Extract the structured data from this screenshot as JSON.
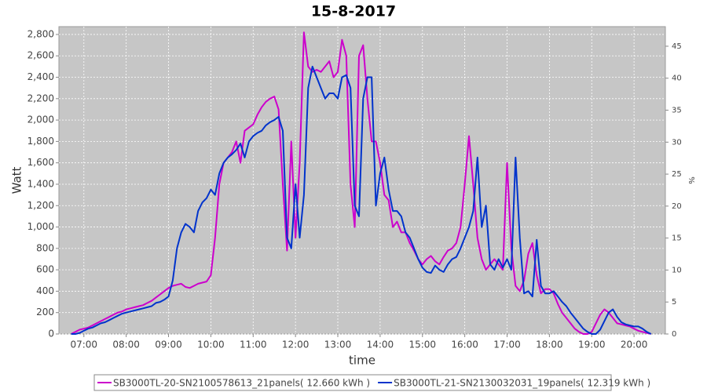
{
  "chart_data": {
    "type": "line",
    "title": "15-8-2017",
    "xlabel": "time",
    "ylabel": "Watt",
    "y2label": "%",
    "x": [
      6.7,
      6.8,
      6.9,
      7.0,
      7.1,
      7.2,
      7.3,
      7.4,
      7.5,
      7.6,
      7.7,
      7.8,
      7.9,
      8.0,
      8.1,
      8.2,
      8.3,
      8.4,
      8.5,
      8.6,
      8.7,
      8.8,
      8.9,
      9.0,
      9.1,
      9.2,
      9.3,
      9.4,
      9.5,
      9.6,
      9.7,
      9.8,
      9.9,
      10.0,
      10.1,
      10.2,
      10.3,
      10.4,
      10.5,
      10.6,
      10.7,
      10.8,
      10.9,
      11.0,
      11.1,
      11.2,
      11.3,
      11.4,
      11.5,
      11.6,
      11.7,
      11.8,
      11.9,
      12.0,
      12.1,
      12.2,
      12.3,
      12.4,
      12.5,
      12.6,
      12.7,
      12.8,
      12.9,
      13.0,
      13.1,
      13.2,
      13.3,
      13.4,
      13.5,
      13.6,
      13.7,
      13.8,
      13.9,
      14.0,
      14.1,
      14.2,
      14.3,
      14.4,
      14.5,
      14.6,
      14.7,
      14.8,
      14.9,
      15.0,
      15.1,
      15.2,
      15.3,
      15.4,
      15.5,
      15.6,
      15.7,
      15.8,
      15.9,
      16.0,
      16.1,
      16.2,
      16.3,
      16.4,
      16.5,
      16.6,
      16.7,
      16.8,
      16.9,
      17.0,
      17.1,
      17.2,
      17.3,
      17.4,
      17.5,
      17.6,
      17.7,
      17.8,
      17.9,
      18.0,
      18.1,
      18.2,
      18.3,
      18.4,
      18.5,
      18.6,
      18.7,
      18.8,
      18.9,
      19.0,
      19.1,
      19.2,
      19.3,
      19.4,
      19.5,
      19.6,
      19.7,
      19.8,
      19.9,
      20.0,
      20.1,
      20.2,
      20.3,
      20.4
    ],
    "series": [
      {
        "name": "SB3000TL-20-SN2100578613_21panels( 12.660 kWh )",
        "color": "#cc00cc",
        "values": [
          0,
          20,
          40,
          50,
          60,
          80,
          100,
          120,
          140,
          160,
          180,
          200,
          210,
          230,
          240,
          250,
          260,
          270,
          290,
          310,
          340,
          370,
          400,
          430,
          450,
          460,
          470,
          440,
          430,
          450,
          470,
          480,
          490,
          550,
          900,
          1400,
          1600,
          1650,
          1700,
          1800,
          1600,
          1900,
          1930,
          1960,
          2050,
          2120,
          2170,
          2200,
          2220,
          2100,
          1400,
          780,
          1800,
          900,
          1600,
          2820,
          2500,
          2450,
          2470,
          2450,
          2500,
          2550,
          2400,
          2450,
          2750,
          2600,
          1400,
          1000,
          2600,
          2700,
          2200,
          1800,
          1800,
          1600,
          1300,
          1250,
          1000,
          1050,
          950,
          950,
          850,
          780,
          700,
          650,
          700,
          730,
          680,
          650,
          720,
          780,
          800,
          850,
          1000,
          1400,
          1850,
          1400,
          900,
          700,
          600,
          650,
          700,
          650,
          600,
          1600,
          800,
          450,
          400,
          500,
          750,
          850,
          550,
          380,
          420,
          420,
          380,
          280,
          200,
          150,
          100,
          50,
          20,
          0,
          0,
          20,
          100,
          180,
          230,
          200,
          150,
          100,
          90,
          80,
          70,
          50,
          30,
          20,
          10,
          0
        ]
      },
      {
        "name": "SB3000TL-21-SN2130032031_19panels( 12.319 kWh )",
        "color": "#0033cc",
        "values": [
          0,
          0,
          10,
          30,
          50,
          60,
          80,
          100,
          110,
          130,
          150,
          170,
          190,
          200,
          210,
          220,
          230,
          240,
          250,
          260,
          290,
          300,
          320,
          350,
          500,
          800,
          950,
          1030,
          1000,
          950,
          1150,
          1230,
          1270,
          1350,
          1300,
          1500,
          1600,
          1650,
          1680,
          1720,
          1780,
          1650,
          1800,
          1850,
          1880,
          1900,
          1950,
          1980,
          2000,
          2030,
          1900,
          900,
          800,
          1400,
          900,
          1300,
          2300,
          2500,
          2400,
          2300,
          2200,
          2250,
          2250,
          2200,
          2400,
          2420,
          2300,
          1200,
          1100,
          2200,
          2400,
          2400,
          1200,
          1500,
          1650,
          1350,
          1150,
          1150,
          1100,
          950,
          900,
          800,
          700,
          620,
          580,
          570,
          640,
          600,
          580,
          650,
          700,
          720,
          800,
          900,
          1000,
          1150,
          1650,
          1000,
          1200,
          650,
          600,
          700,
          620,
          700,
          600,
          1650,
          900,
          380,
          400,
          350,
          880,
          450,
          380,
          380,
          400,
          350,
          300,
          260,
          200,
          150,
          100,
          50,
          20,
          0,
          0,
          40,
          120,
          200,
          230,
          160,
          110,
          90,
          80,
          70,
          70,
          50,
          20,
          0
        ]
      }
    ],
    "xlim": [
      6.41,
      20.74
    ],
    "xticks": [
      {
        "value": 7,
        "label": "07:00"
      },
      {
        "value": 8,
        "label": "08:00"
      },
      {
        "value": 9,
        "label": "09:00"
      },
      {
        "value": 10,
        "label": "10:00"
      },
      {
        "value": 11,
        "label": "11:00"
      },
      {
        "value": 12,
        "label": "12:00"
      },
      {
        "value": 13,
        "label": "13:00"
      },
      {
        "value": 14,
        "label": "14:00"
      },
      {
        "value": 15,
        "label": "15:00"
      },
      {
        "value": 16,
        "label": "16:00"
      },
      {
        "value": 17,
        "label": "17:00"
      },
      {
        "value": 18,
        "label": "18:00"
      },
      {
        "value": 19,
        "label": "19:00"
      },
      {
        "value": 20,
        "label": "20:00"
      }
    ],
    "ylim": [
      0,
      2873
    ],
    "yticks": [
      0,
      200,
      400,
      600,
      800,
      {
        "value": 1000,
        "label": "1,000"
      },
      {
        "value": 1200,
        "label": "1,200"
      },
      {
        "value": 1400,
        "label": "1,400"
      },
      {
        "value": 1600,
        "label": "1,600"
      },
      {
        "value": 1800,
        "label": "1,800"
      },
      {
        "value": 2000,
        "label": "2,000"
      },
      {
        "value": 2200,
        "label": "2,200"
      },
      {
        "value": 2400,
        "label": "2,400"
      },
      {
        "value": 2600,
        "label": "2,600"
      },
      {
        "value": 2800,
        "label": "2,800"
      }
    ],
    "y2lim": [
      0,
      48.06
    ],
    "y2ticks": [
      0,
      5,
      10,
      15,
      20,
      25,
      30,
      35,
      40,
      45
    ],
    "grid": true,
    "legend": "bottom"
  }
}
